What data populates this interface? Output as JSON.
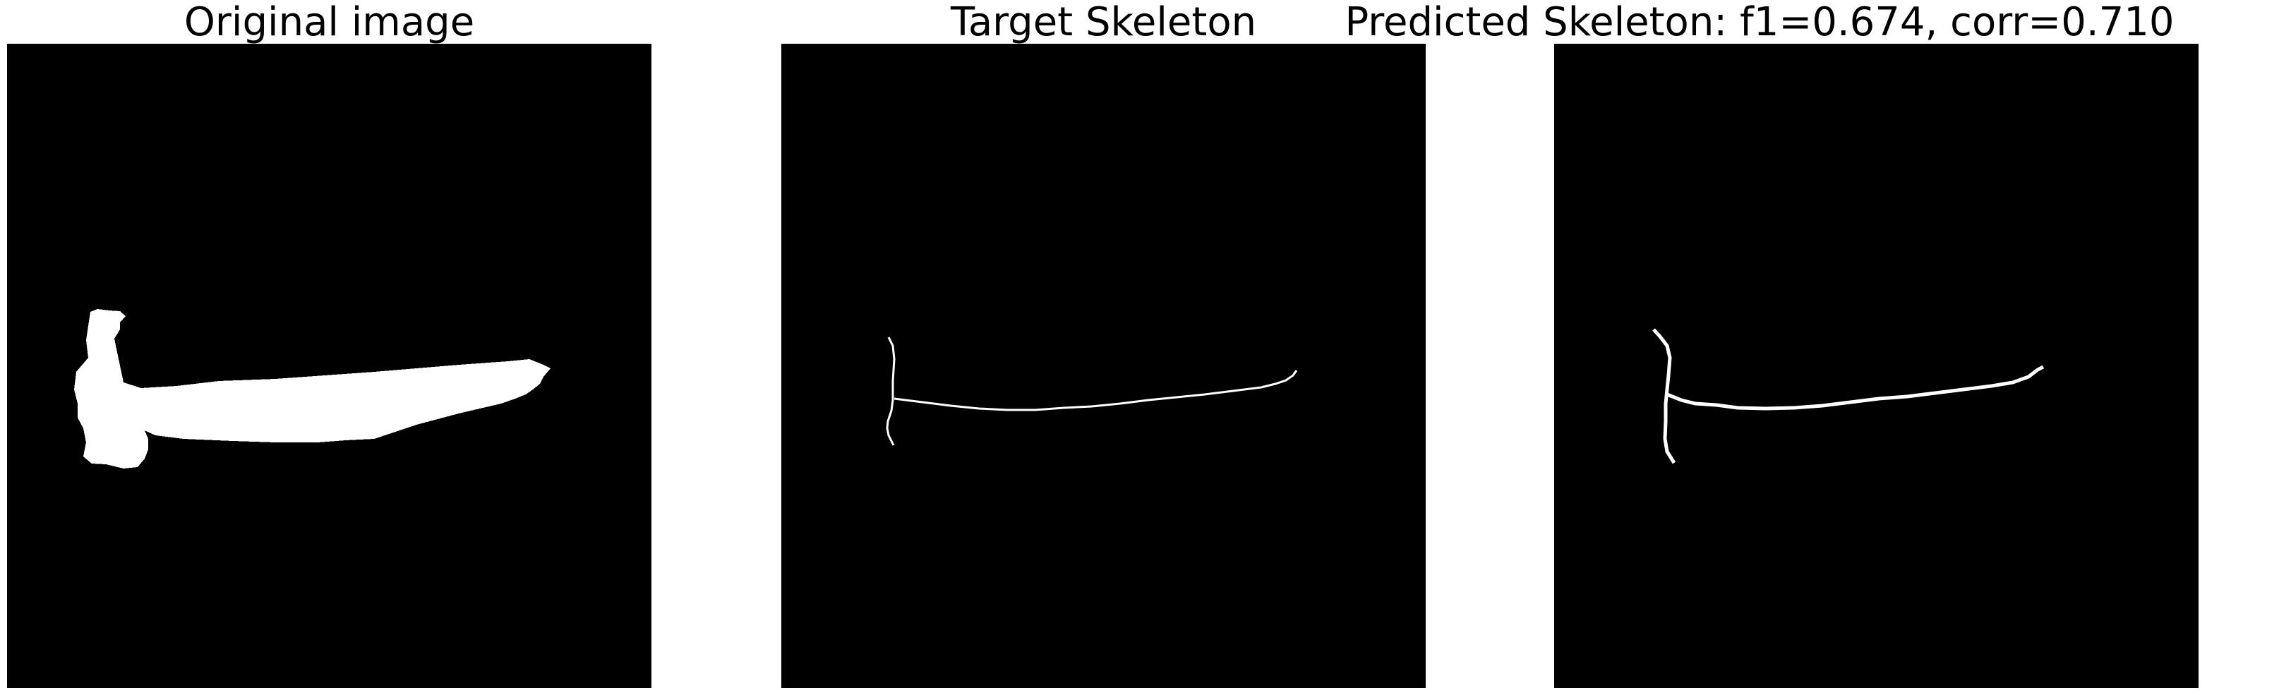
{
  "figure": {
    "panels": [
      {
        "title": "Original image"
      },
      {
        "title": "Target Skeleton"
      },
      {
        "title": "Predicted Skeleton: f1=0.674, corr=0.710"
      }
    ],
    "colors": {
      "background": "#000000",
      "foreground": "#ffffff",
      "page": "#ffffff"
    }
  }
}
